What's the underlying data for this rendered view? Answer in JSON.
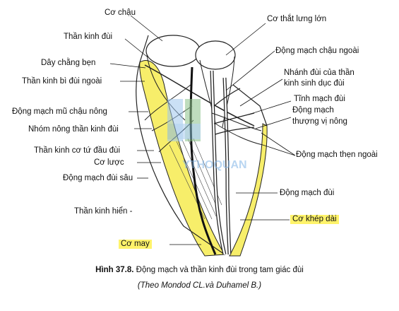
{
  "labels": {
    "co_chau": "Cơ chậu",
    "than_kinh_dui": "Thần kinh đùi",
    "day_chang_ben": "Dây chằng bẹn",
    "than_kinh_bi_dui_ngoai": "Thần kinh bì đùi ngoài",
    "dong_mach_mu_chau_nong": "Động mạch mũ chậu nông",
    "nhom_nong_than_kinh_dui": "Nhóm nông thần kinh đùi",
    "than_kinh_co_tu_dau_dui": "Thần kinh cơ tứ đầu đùi",
    "co_luoc": "Cơ lược",
    "dong_mach_dui_sau": "Động mạch đùi sâu",
    "than_kinh_hien": "Thần kinh hiển -",
    "co_may": "Cơ may",
    "co_that_lung_lon": "Cơ thắt lưng lớn",
    "dong_mach_chau_ngoai": "Động mạch chậu ngoài",
    "nhanh_dui_1": "Nhánh đùi của thần",
    "nhanh_dui_2": "kinh sinh dục đùi",
    "tinh_mach_dui": "Tĩnh mạch đùi",
    "dm_thuong_vi_1": "Động mạch",
    "dm_thuong_vi_2": "thượng vị nông",
    "dm_then_ngoai": "Động mạch thẹn ngoài",
    "dong_mach_dui": "Động mạch đùi",
    "co_khep_dai": "Cơ khép dài"
  },
  "watermark": "YTHOQUAN",
  "caption": {
    "figure_no": "Hình 37.8.",
    "title": "Động mạch và thần kinh đùi trong tam giác đùi",
    "source": "(Theo Mondod CL.và Duhamel B.)"
  },
  "colors": {
    "highlight": "#fff36a",
    "muscle_yellow": "#f7ee6a",
    "watermark_blue": "#7fb3e6",
    "ink": "#111111"
  }
}
